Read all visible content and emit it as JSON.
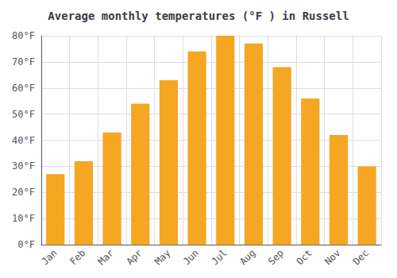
{
  "chart_data": {
    "type": "bar",
    "title": "Average monthly temperatures (°F ) in Russell",
    "categories": [
      "Jan",
      "Feb",
      "Mar",
      "Apr",
      "May",
      "Jun",
      "Jul",
      "Aug",
      "Sep",
      "Oct",
      "Nov",
      "Dec"
    ],
    "values": [
      27,
      32,
      43,
      54,
      63,
      74,
      80,
      77,
      68,
      56,
      42,
      30
    ],
    "color": "#F5A623",
    "ylim": [
      0,
      80
    ],
    "yticks": [
      {
        "value": 0,
        "label": "0°F"
      },
      {
        "value": 10,
        "label": "10°F"
      },
      {
        "value": 20,
        "label": "20°F"
      },
      {
        "value": 30,
        "label": "30°F"
      },
      {
        "value": 40,
        "label": "40°F"
      },
      {
        "value": 50,
        "label": "50°F"
      },
      {
        "value": 60,
        "label": "60°F"
      },
      {
        "value": 70,
        "label": "70°F"
      },
      {
        "value": 80,
        "label": "80°F"
      }
    ],
    "grid": true
  }
}
